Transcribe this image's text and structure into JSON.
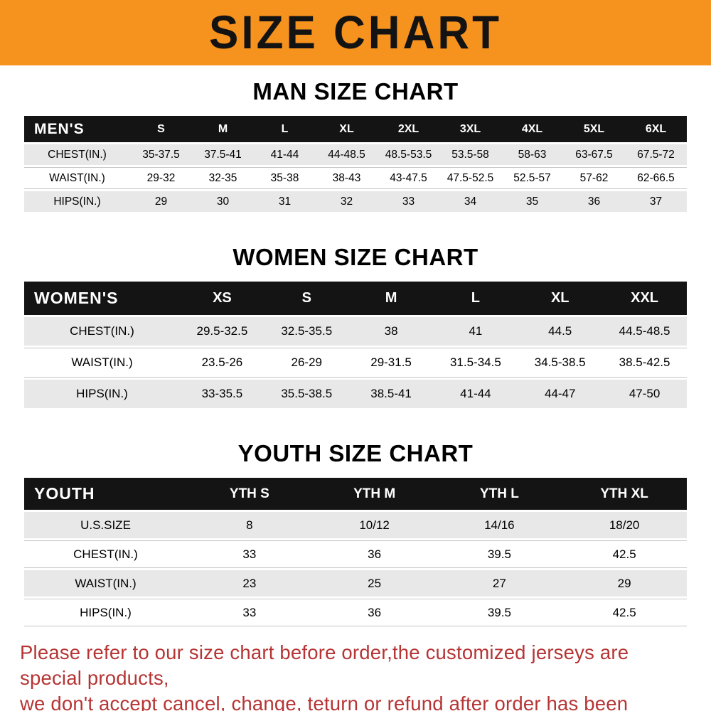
{
  "banner": {
    "title": "SIZE CHART"
  },
  "colors": {
    "banner_bg": "#f6921e",
    "table_header_bg": "#141414",
    "row_stripe": "#e8e8e8",
    "footer_text": "#b63434"
  },
  "chart_data": [
    {
      "type": "table",
      "title": "MAN SIZE CHART",
      "label_header": "MEN'S",
      "columns": [
        "S",
        "M",
        "L",
        "XL",
        "2XL",
        "3XL",
        "4XL",
        "5XL",
        "6XL"
      ],
      "rows": [
        {
          "label": "CHEST(IN.)",
          "values": [
            "35-37.5",
            "37.5-41",
            "41-44",
            "44-48.5",
            "48.5-53.5",
            "53.5-58",
            "58-63",
            "63-67.5",
            "67.5-72"
          ]
        },
        {
          "label": "WAIST(IN.)",
          "values": [
            "29-32",
            "32-35",
            "35-38",
            "38-43",
            "43-47.5",
            "47.5-52.5",
            "52.5-57",
            "57-62",
            "62-66.5"
          ]
        },
        {
          "label": "HIPS(IN.)",
          "values": [
            "29",
            "30",
            "31",
            "32",
            "33",
            "34",
            "35",
            "36",
            "37"
          ]
        }
      ]
    },
    {
      "type": "table",
      "title": "WOMEN SIZE CHART",
      "label_header": "WOMEN'S",
      "columns": [
        "XS",
        "S",
        "M",
        "L",
        "XL",
        "XXL"
      ],
      "rows": [
        {
          "label": "CHEST(IN.)",
          "values": [
            "29.5-32.5",
            "32.5-35.5",
            "38",
            "41",
            "44.5",
            "44.5-48.5"
          ]
        },
        {
          "label": "WAIST(IN.)",
          "values": [
            "23.5-26",
            "26-29",
            "29-31.5",
            "31.5-34.5",
            "34.5-38.5",
            "38.5-42.5"
          ]
        },
        {
          "label": "HIPS(IN.)",
          "values": [
            "33-35.5",
            "35.5-38.5",
            "38.5-41",
            "41-44",
            "44-47",
            "47-50"
          ]
        }
      ]
    },
    {
      "type": "table",
      "title": "YOUTH SIZE CHART",
      "label_header": "YOUTH",
      "columns": [
        "YTH S",
        "YTH M",
        "YTH L",
        "YTH XL"
      ],
      "rows": [
        {
          "label": "U.S.SIZE",
          "values": [
            "8",
            "10/12",
            "14/16",
            "18/20"
          ]
        },
        {
          "label": "CHEST(IN.)",
          "values": [
            "33",
            "36",
            "39.5",
            "42.5"
          ]
        },
        {
          "label": "WAIST(IN.)",
          "values": [
            "23",
            "25",
            "27",
            "29"
          ]
        },
        {
          "label": "HIPS(IN.)",
          "values": [
            "33",
            "36",
            "39.5",
            "42.5"
          ]
        }
      ]
    }
  ],
  "footer": {
    "line1": "Please refer to our size chart before order,the customized jerseys are special products,",
    "line2": "we don't accept cancel, change, teturn or refund after order has been placed!"
  }
}
